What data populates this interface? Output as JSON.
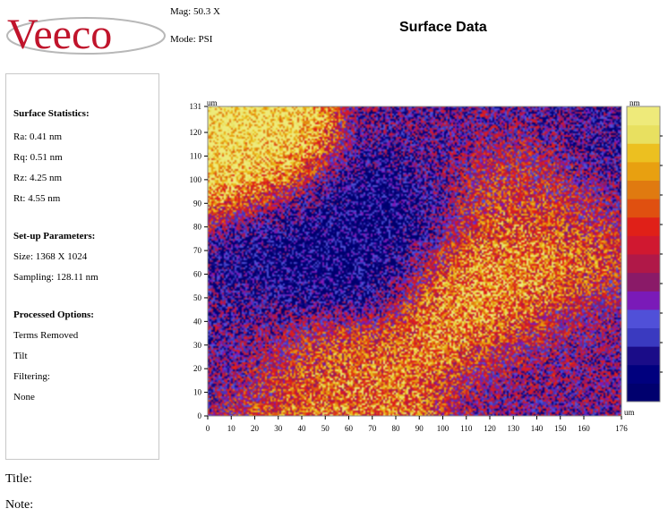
{
  "header": {
    "logo_text": "Veeco",
    "mag": "Mag: 50.3 X",
    "mode": "Mode: PSI",
    "title": "Surface Data"
  },
  "stats": {
    "heading": "Surface Statistics:",
    "ra": "Ra: 0.41 nm",
    "rq": "Rq: 0.51 nm",
    "rz": "Rz: 4.25 nm",
    "rt": "Rt: 4.55 nm"
  },
  "setup": {
    "heading": "Set-up Parameters:",
    "size": "Size: 1368 X 1024",
    "sampling": "Sampling: 128.11 nm"
  },
  "processed": {
    "heading": "Processed Options:",
    "terms": "Terms Removed",
    "tilt": "Tilt",
    "filtering": "Filtering:",
    "none": "None"
  },
  "footer": {
    "title_label": "Title:",
    "note_label": "Note:"
  },
  "colors": {
    "colorbar": [
      "#00006e",
      "#00007e",
      "#1a0c88",
      "#3a3ac0",
      "#5050d8",
      "#7a1ab8",
      "#8a1a68",
      "#b01848",
      "#d01830",
      "#e02018",
      "#e05010",
      "#e07a10",
      "#e8a010",
      "#ecc020",
      "#e8e060",
      "#eeea7a"
    ]
  },
  "chart_data": {
    "type": "heatmap",
    "x_unit": "um",
    "y_unit": "um",
    "colorbar_unit": "nm",
    "xlim": [
      0,
      176
    ],
    "ylim": [
      0,
      131
    ],
    "x_ticks": [
      "0",
      "10",
      "20",
      "30",
      "40",
      "50",
      "60",
      "70",
      "80",
      "90",
      "100",
      "110",
      "120",
      "130",
      "140",
      "150",
      "160",
      "176"
    ],
    "y_ticks": [
      "0",
      "10",
      "20",
      "30",
      "40",
      "50",
      "60",
      "70",
      "80",
      "90",
      "100",
      "110",
      "120",
      "131"
    ],
    "x_tick_values": [
      0,
      10,
      20,
      30,
      40,
      50,
      60,
      70,
      80,
      90,
      100,
      110,
      120,
      130,
      140,
      150,
      160,
      176
    ],
    "y_tick_values": [
      0,
      10,
      20,
      30,
      40,
      50,
      60,
      70,
      80,
      90,
      100,
      110,
      120,
      131
    ],
    "grid": false,
    "legend": "right colorbar",
    "features": [
      {
        "x": 15,
        "y": 112,
        "level": 0.95
      },
      {
        "x": 35,
        "y": 70,
        "level": 0.1
      },
      {
        "x": 75,
        "y": 82,
        "level": 0.1
      },
      {
        "x": 120,
        "y": 55,
        "level": 0.8
      },
      {
        "x": 135,
        "y": 95,
        "level": 0.6
      },
      {
        "x": 165,
        "y": 120,
        "level": 0.2
      },
      {
        "x": 45,
        "y": 10,
        "level": 0.7
      },
      {
        "x": 100,
        "y": 125,
        "level": 0.3
      },
      {
        "x": 150,
        "y": 20,
        "level": 0.35
      },
      {
        "x": 10,
        "y": 30,
        "level": 0.3
      }
    ]
  }
}
